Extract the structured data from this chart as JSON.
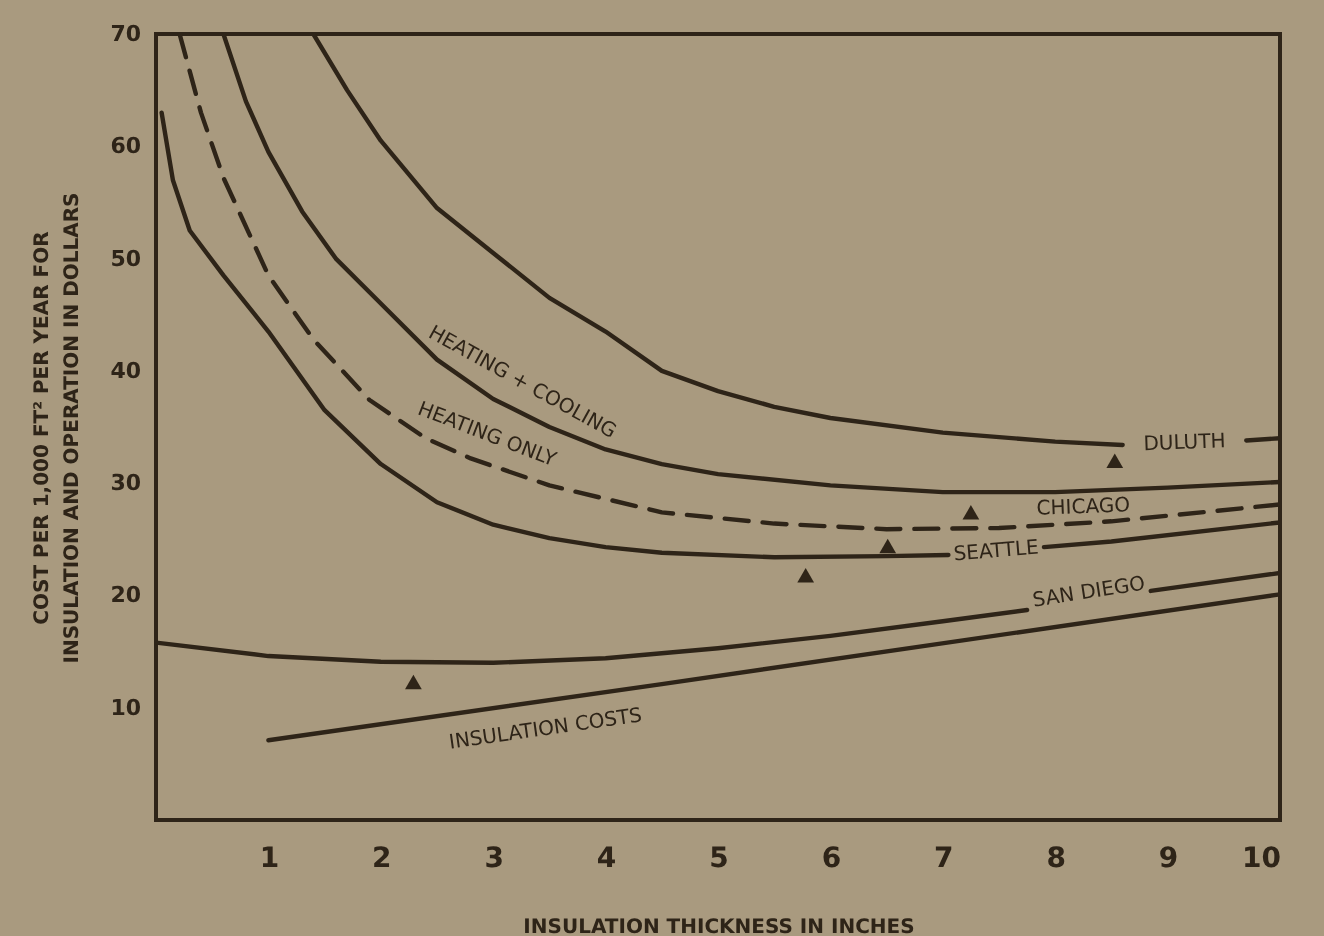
{
  "chart_data": {
    "type": "line",
    "xlabel": "INSULATION  THICKNESS  IN  INCHES",
    "ylabel": "COST PER 1,000 FT² PER YEAR FOR\nINSULATION AND OPERATION IN DOLLARS",
    "xlim": [
      0,
      10
    ],
    "xticks": [
      1,
      2,
      3,
      4,
      5,
      6,
      7,
      8,
      9,
      10
    ],
    "ylim": [
      0,
      70
    ],
    "yticks": [
      10,
      20,
      30,
      40,
      50,
      60,
      70
    ],
    "series": [
      {
        "type": "line",
        "name": "DULUTH",
        "color": "#2e2418",
        "x": [
          1.4,
          1.7,
          2,
          2.5,
          3,
          3.5,
          4,
          4.5,
          5,
          5.5,
          6,
          7,
          8,
          8.6,
          9.1,
          9.7,
          10
        ],
        "values": [
          70,
          65,
          60.5,
          54.5,
          50.5,
          46.5,
          43.5,
          40,
          38.2,
          36.8,
          35.8,
          34.5,
          33.7,
          33.4,
          null,
          33.8,
          34
        ]
      },
      {
        "type": "line",
        "name": "HEATING + COOLING",
        "color": "#2e2418",
        "x": [
          0.6,
          0.8,
          1,
          1.3,
          1.6,
          2,
          2.5,
          3,
          3.5,
          4,
          4.5,
          5,
          6,
          7,
          8,
          9,
          10
        ],
        "values": [
          70,
          64,
          59.5,
          54.2,
          50,
          46,
          41,
          37.5,
          35,
          33,
          31.7,
          30.8,
          29.8,
          29.2,
          29.2,
          29.6,
          30.1
        ]
      },
      {
        "type": "line",
        "name": "HEATING ONLY",
        "color": "#2e2418",
        "line_style": "dashed",
        "x": [
          0.21,
          0.4,
          0.6,
          1,
          1.4,
          1.9,
          2.4,
          2.8,
          3.5,
          4.5,
          5.5,
          6.5,
          7.5,
          8.5,
          10
        ],
        "values": [
          70,
          63,
          57.2,
          48.5,
          42.8,
          37.4,
          34,
          32.2,
          29.8,
          27.4,
          26.4,
          25.9,
          26,
          26.6,
          28.1
        ]
      },
      {
        "type": "line",
        "name": "SEATTLE",
        "color": "#2e2418",
        "x": [
          0.05,
          0.15,
          0.3,
          0.6,
          1,
          1.5,
          2,
          2.5,
          3,
          3.5,
          4,
          4.5,
          5.5,
          6.5,
          7.05,
          7.45,
          7.9,
          8.5,
          10
        ],
        "values": [
          63,
          57,
          52.5,
          48.5,
          43.5,
          36.5,
          31.7,
          28.3,
          26.3,
          25.1,
          24.3,
          23.8,
          23.4,
          23.5,
          23.6,
          null,
          24.3,
          24.8,
          26.5
        ]
      },
      {
        "type": "line",
        "name": "SAN DIEGO",
        "color": "#2e2418",
        "x": [
          0,
          1,
          2,
          3,
          4,
          5,
          6,
          7,
          7.75,
          8.3,
          8.85,
          10
        ],
        "values": [
          15.8,
          14.6,
          14.1,
          14,
          14.4,
          15.3,
          16.4,
          17.7,
          18.7,
          null,
          20.4,
          22
        ]
      },
      {
        "type": "line",
        "name": "INSULATION COSTS",
        "color": "#2e2418",
        "x": [
          1,
          4.5,
          10
        ],
        "values": [
          7.1,
          12.1,
          20.1
        ]
      },
      {
        "type": "scatter",
        "color": "#2e2418",
        "marker": "triangle",
        "x": [
          2.29,
          5.78,
          6.51,
          7.25,
          8.53
        ],
        "values": [
          12.3,
          21.8,
          24.4,
          27.4,
          32
        ]
      }
    ],
    "annotations": [
      "CHICAGO"
    ]
  }
}
